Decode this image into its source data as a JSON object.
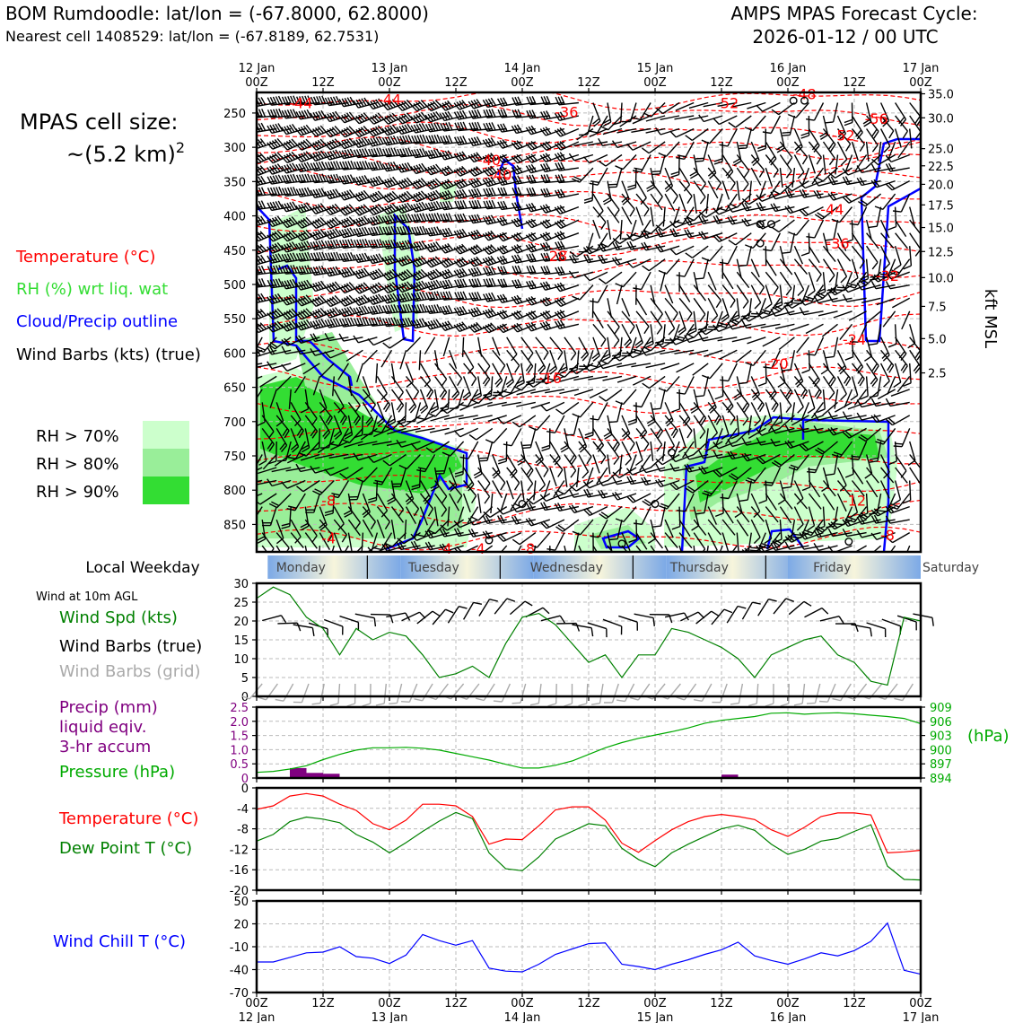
{
  "header": {
    "station_title": "BOM Rumdoodle: lat/lon = (-67.8000, 62.8000)",
    "nearest_cell": "Nearest cell 1408529: lat/lon = (-67.8189, 62.7531)",
    "model_title": "AMPS MPAS Forecast Cycle:",
    "cycle": "2026-01-12 / 00 UTC"
  },
  "cell_size": {
    "label": "MPAS cell size:",
    "value": "~(5.2 km)",
    "exponent": "2"
  },
  "legend": {
    "temperature": "Temperature (°C)",
    "rh": "RH (%) wrt liq. wat",
    "cloud": "Cloud/Precip outline",
    "barbs": "Wind Barbs (kts) (true)",
    "rh70": "RH > 70%",
    "rh80": "RH > 80%",
    "rh90": "RH > 90%"
  },
  "colors": {
    "temp": "#ff0000",
    "rh_text": "#33dd33",
    "cloud": "#0000ff",
    "rh70": "#ccffcc",
    "rh80": "#99ee99",
    "rh90": "#33dd33",
    "wind_speed": "#008000",
    "precip": "#800080",
    "pressure": "#00aa00",
    "dewpoint": "#008000",
    "windchill": "#0000ff",
    "grid_barbs": "#aaaaaa"
  },
  "time_axis": {
    "top_labels": [
      {
        "t": 0,
        "l1": "12 Jan",
        "l2": "00Z"
      },
      {
        "t": 12,
        "l1": "",
        "l2": "12Z"
      },
      {
        "t": 24,
        "l1": "13 Jan",
        "l2": "00Z"
      },
      {
        "t": 36,
        "l1": "",
        "l2": "12Z"
      },
      {
        "t": 48,
        "l1": "14 Jan",
        "l2": "00Z"
      },
      {
        "t": 60,
        "l1": "",
        "l2": "12Z"
      },
      {
        "t": 72,
        "l1": "15 Jan",
        "l2": "00Z"
      },
      {
        "t": 84,
        "l1": "",
        "l2": "12Z"
      },
      {
        "t": 96,
        "l1": "16 Jan",
        "l2": "00Z"
      },
      {
        "t": 108,
        "l1": "",
        "l2": "12Z"
      },
      {
        "t": 120,
        "l1": "17 Jan",
        "l2": "00Z"
      }
    ]
  },
  "weekday": {
    "title": "Local Weekday",
    "days": [
      "Monday",
      "Tuesday",
      "Wednesday",
      "Thursday",
      "Friday",
      "Saturday"
    ]
  },
  "chart_data": [
    {
      "type": "heatmap",
      "name": "time-height cross section",
      "x_range_hours": [
        0,
        120
      ],
      "y_pressure_ticks": [
        250,
        300,
        350,
        400,
        450,
        500,
        550,
        600,
        650,
        700,
        750,
        800,
        850
      ],
      "y_pressure_range": [
        220,
        890
      ],
      "height_kft_ticks": [
        {
          "label": "35.0",
          "p": 222
        },
        {
          "label": "30.0",
          "p": 257
        },
        {
          "label": "25.0",
          "p": 302
        },
        {
          "label": "22.5",
          "p": 327
        },
        {
          "label": "20.0",
          "p": 354
        },
        {
          "label": "17.5",
          "p": 384
        },
        {
          "label": "15.0",
          "p": 417
        },
        {
          "label": "12.5",
          "p": 452
        },
        {
          "label": "10.0",
          "p": 490
        },
        {
          "label": "7.5",
          "p": 532
        },
        {
          "label": "5.0",
          "p": 579
        },
        {
          "label": "2.5",
          "p": 629
        }
      ],
      "right_axis_label": "kft MSL",
      "temperature_labels": [
        {
          "text": "-44",
          "t": 8,
          "p": 235
        },
        {
          "text": "-44",
          "t": 24,
          "p": 230
        },
        {
          "text": "-48",
          "t": 99,
          "p": 222
        },
        {
          "text": "-52",
          "t": 85,
          "p": 235
        },
        {
          "text": "-56",
          "t": 112,
          "p": 258
        },
        {
          "text": "-36",
          "t": 56,
          "p": 248
        },
        {
          "text": "-52",
          "t": 106,
          "p": 282
        },
        {
          "text": "-40",
          "t": 42,
          "p": 318
        },
        {
          "text": "-40",
          "t": 44,
          "p": 340
        },
        {
          "text": "-44",
          "t": 104,
          "p": 390
        },
        {
          "text": "-28",
          "t": 54,
          "p": 458
        },
        {
          "text": "-36",
          "t": 105,
          "p": 440
        },
        {
          "text": "-32",
          "t": 114,
          "p": 487
        },
        {
          "text": "-24",
          "t": 108,
          "p": 580
        },
        {
          "text": "-20",
          "t": 94,
          "p": 615
        },
        {
          "text": "-16",
          "t": 53,
          "p": 636
        },
        {
          "text": "-12",
          "t": 108,
          "p": 815
        },
        {
          "text": "-8",
          "t": 13,
          "p": 815
        },
        {
          "text": "-4",
          "t": 13,
          "p": 870
        },
        {
          "text": "-4",
          "t": 34,
          "p": 885
        },
        {
          "text": "-4",
          "t": 40,
          "p": 885
        },
        {
          "text": "-8",
          "t": 49,
          "p": 885
        },
        {
          "text": "-8",
          "t": 114,
          "p": 865
        }
      ]
    },
    {
      "type": "line",
      "name": "Wind Spd (kts)",
      "ylim": [
        0,
        30
      ],
      "yticks": [
        0,
        5,
        10,
        15,
        20,
        25,
        30
      ],
      "x": [
        0,
        3,
        6,
        9,
        12,
        15,
        18,
        21,
        24,
        27,
        30,
        33,
        36,
        39,
        42,
        45,
        48,
        51,
        54,
        57,
        60,
        63,
        66,
        69,
        72,
        75,
        78,
        81,
        84,
        87,
        90,
        93,
        96,
        99,
        102,
        105,
        108,
        111,
        114,
        117,
        120
      ],
      "values": [
        26,
        29,
        27,
        21,
        18,
        11,
        18,
        15,
        17,
        16,
        11,
        5,
        6,
        8,
        5,
        14,
        21,
        22,
        19,
        14,
        9,
        11,
        5,
        11,
        11,
        18,
        17,
        15,
        13,
        10,
        5,
        11,
        13,
        15,
        16,
        11,
        9,
        4,
        3,
        21,
        20
      ],
      "labels": {
        "wind_speed": "Wind Spd (kts)",
        "wind_barbs": "Wind Barbs (true)",
        "wind_barbs_grid": "Wind Barbs (grid)",
        "wind_title": "Wind at 10m AGL"
      }
    },
    {
      "type": "bar",
      "name": "Precip (mm) liquid eqiv. 3-hr accum",
      "ylim": [
        0,
        2.5
      ],
      "yticks": [
        "0",
        "0.5",
        "1.0",
        "1.5",
        "2.0",
        "2.5"
      ],
      "bars": [
        {
          "t": 7.5,
          "value": 0.35
        },
        {
          "t": 10.5,
          "value": 0.18
        },
        {
          "t": 13.5,
          "value": 0.15
        },
        {
          "t": 85.5,
          "value": 0.12
        }
      ],
      "labels": {
        "precip_1": "Precip (mm)",
        "precip_2": "liquid eqiv.",
        "precip_3": "3-hr accum",
        "pressure": "Pressure (hPa)",
        "pressure_unit": "(hPa)"
      }
    },
    {
      "type": "line",
      "name": "Pressure (hPa)",
      "ylim": [
        894,
        909
      ],
      "yticks": [
        "909",
        "906",
        "903",
        "900",
        "897",
        "894"
      ],
      "x": [
        0,
        3,
        6,
        9,
        12,
        15,
        18,
        21,
        24,
        27,
        30,
        33,
        36,
        39,
        42,
        45,
        48,
        51,
        54,
        57,
        60,
        63,
        66,
        69,
        72,
        75,
        78,
        81,
        84,
        87,
        90,
        93,
        96,
        99,
        102,
        105,
        108,
        111,
        114,
        117,
        120
      ],
      "values": [
        895.2,
        895.4,
        895.9,
        896.6,
        897.9,
        899.0,
        899.9,
        900.4,
        900.4,
        900.5,
        900.3,
        899.9,
        899.2,
        898.5,
        897.8,
        896.9,
        896.1,
        896.1,
        896.7,
        897.6,
        899.0,
        900.4,
        901.5,
        902.4,
        903.1,
        903.8,
        904.6,
        905.6,
        906.2,
        906.6,
        907.0,
        907.7,
        907.8,
        907.5,
        907.7,
        907.8,
        907.6,
        907.3,
        907.0,
        906.6,
        905.5
      ]
    },
    {
      "type": "line",
      "name": "Temperature / Dew Point",
      "ylim": [
        -20,
        0
      ],
      "yticks": [
        "0",
        "-4",
        "-8",
        "-12",
        "-16",
        "-20"
      ],
      "x": [
        0,
        3,
        6,
        9,
        12,
        15,
        18,
        21,
        24,
        27,
        30,
        33,
        36,
        39,
        42,
        45,
        48,
        51,
        54,
        57,
        60,
        63,
        66,
        69,
        72,
        75,
        78,
        81,
        84,
        87,
        90,
        93,
        96,
        99,
        102,
        105,
        108,
        111,
        114,
        117,
        120
      ],
      "series": [
        {
          "name": "Temperature (°C)",
          "values": [
            -4.2,
            -3.5,
            -1.6,
            -1.1,
            -1.6,
            -3.2,
            -4.4,
            -7.0,
            -8.2,
            -6.3,
            -3.2,
            -3.2,
            -3.5,
            -5.6,
            -11.0,
            -10.0,
            -10.1,
            -7.4,
            -4.3,
            -3.7,
            -3.7,
            -6.3,
            -10.8,
            -12.6,
            -10.3,
            -8.2,
            -6.6,
            -5.6,
            -5.2,
            -5.6,
            -6.2,
            -8.2,
            -9.5,
            -7.7,
            -5.6,
            -4.9,
            -4.9,
            -5.3,
            -12.7,
            -12.5,
            -12.2
          ]
        },
        {
          "name": "Dew Point T (°C)",
          "values": [
            -10.4,
            -9.1,
            -6.6,
            -5.7,
            -6.1,
            -6.8,
            -9.1,
            -10.6,
            -12.7,
            -10.7,
            -8.5,
            -6.5,
            -4.8,
            -6.0,
            -12.7,
            -15.8,
            -16.2,
            -13.5,
            -10.0,
            -8.5,
            -7.0,
            -7.4,
            -11.8,
            -14.0,
            -15.4,
            -12.7,
            -11.0,
            -9.5,
            -8.0,
            -7.3,
            -8.3,
            -11.0,
            -13.0,
            -12.0,
            -10.4,
            -9.9,
            -8.5,
            -7.2,
            -15.3,
            -17.9,
            -18.0
          ]
        }
      ]
    },
    {
      "type": "line",
      "name": "Wind Chill T (°C)",
      "ylim": [
        -70,
        50
      ],
      "yticks": [
        "50",
        "20",
        "-10",
        "-40",
        "-70"
      ],
      "x": [
        0,
        3,
        6,
        9,
        12,
        15,
        18,
        21,
        24,
        27,
        30,
        33,
        36,
        39,
        42,
        45,
        48,
        51,
        54,
        57,
        60,
        63,
        66,
        69,
        72,
        75,
        78,
        81,
        84,
        87,
        90,
        93,
        96,
        99,
        102,
        105,
        108,
        111,
        114,
        117,
        120
      ],
      "values": [
        -30,
        -30,
        -24,
        -18,
        -17,
        -10,
        -23,
        -25,
        -32,
        -21,
        6,
        -2,
        -8,
        -2,
        -38,
        -42,
        -43,
        -33,
        -20,
        -13,
        -6,
        -5,
        -33,
        -36,
        -40,
        -33,
        -27,
        -20,
        -14,
        -4,
        -22,
        -28,
        -33,
        -26,
        -18,
        -22,
        -15,
        -3,
        21,
        -41,
        -46
      ],
      "label": "Wind Chill T (°C)"
    }
  ]
}
